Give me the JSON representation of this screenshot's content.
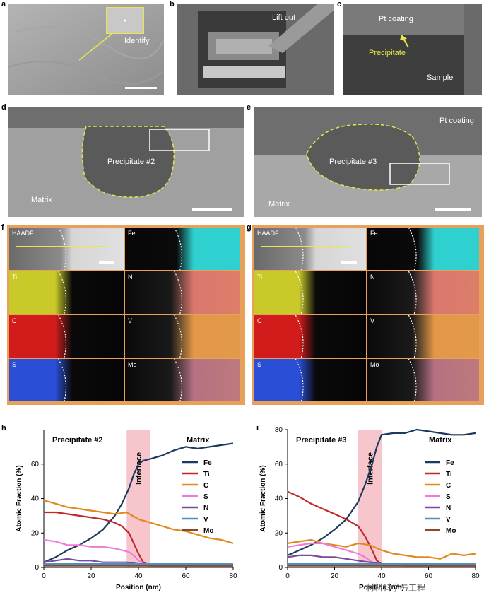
{
  "panels": {
    "a": {
      "letter": "a",
      "label": "Identify"
    },
    "b": {
      "letter": "b",
      "label": "Lift out"
    },
    "c": {
      "letter": "c",
      "coating": "Pt coating",
      "precipitate": "Precipitate",
      "sample": "Sample"
    },
    "d": {
      "letter": "d",
      "precipitate": "Precipitate  #2",
      "matrix": "Matrix"
    },
    "e": {
      "letter": "e",
      "precipitate": "Precipitate #3",
      "matrix": "Matrix",
      "coating": "Pt coating"
    },
    "f": {
      "letter": "f"
    },
    "g": {
      "letter": "g"
    },
    "h": {
      "letter": "h"
    },
    "i": {
      "letter": "i"
    }
  },
  "maps": {
    "f": [
      {
        "label": "HAADF",
        "color": "#d8d8d8"
      },
      {
        "label": "Fe",
        "color": "#2fd0d0"
      },
      {
        "label": "Ti",
        "color": "#c9c92a"
      },
      {
        "label": "N",
        "color": "#c43a8a"
      },
      {
        "label": "C",
        "color": "#d21c1c"
      },
      {
        "label": "V",
        "color": "#d88a2a"
      },
      {
        "label": "S",
        "color": "#2a4ed6"
      },
      {
        "label": "Mo",
        "color": "#6a2ac0"
      }
    ],
    "g": [
      {
        "label": "HAADF",
        "color": "#d8d8d8"
      },
      {
        "label": "Fe",
        "color": "#2fd0d0"
      },
      {
        "label": "Ti",
        "color": "#c9c92a"
      },
      {
        "label": "N",
        "color": "#c43a8a"
      },
      {
        "label": "C",
        "color": "#d21c1c"
      },
      {
        "label": "V",
        "color": "#d88a2a"
      },
      {
        "label": "S",
        "color": "#2a4ed6"
      },
      {
        "label": "Mo",
        "color": "#6a2ac0"
      }
    ]
  },
  "chart_data": [
    {
      "type": "line",
      "title": "Precipitate #2",
      "region_label": "Matrix",
      "band_label": "Interface",
      "band_range": [
        35,
        45
      ],
      "xlabel": "Position (nm)",
      "ylabel": "Atomic Fraction (%)",
      "xlim": [
        0,
        80
      ],
      "ylim": [
        0,
        80
      ],
      "xticks": [
        0,
        20,
        40,
        60,
        80
      ],
      "yticks": [
        0,
        20,
        40,
        60
      ],
      "legend_position": "right",
      "series": [
        {
          "name": "Fe",
          "color": "#1c3a5e",
          "x": [
            0,
            5,
            10,
            15,
            20,
            25,
            30,
            33,
            36,
            38,
            40,
            42,
            45,
            50,
            55,
            60,
            65,
            70,
            75,
            80
          ],
          "y": [
            3,
            6,
            10,
            13,
            17,
            22,
            30,
            37,
            46,
            54,
            60,
            62,
            63,
            65,
            68,
            70,
            69,
            70,
            71,
            72
          ]
        },
        {
          "name": "Ti",
          "color": "#c0282a",
          "x": [
            0,
            5,
            10,
            15,
            20,
            25,
            30,
            33,
            36,
            38,
            40,
            42,
            45,
            50,
            60,
            70,
            80
          ],
          "y": [
            32,
            32,
            31,
            30,
            29,
            28,
            26,
            24,
            20,
            14,
            8,
            3,
            1,
            0.5,
            0.5,
            0.5,
            0.5
          ]
        },
        {
          "name": "C",
          "color": "#e08a1e",
          "x": [
            0,
            5,
            10,
            15,
            20,
            25,
            30,
            35,
            40,
            45,
            50,
            55,
            60,
            65,
            70,
            75,
            80
          ],
          "y": [
            39,
            37,
            35,
            34,
            33,
            32,
            31,
            32,
            28,
            26,
            24,
            22,
            21,
            19,
            17,
            16,
            14
          ]
        },
        {
          "name": "S",
          "color": "#f07ad8",
          "x": [
            0,
            5,
            10,
            15,
            20,
            25,
            30,
            33,
            36,
            38,
            40,
            42,
            45,
            50,
            60,
            70,
            80
          ],
          "y": [
            16,
            15,
            13,
            13,
            12,
            12,
            11,
            10,
            9,
            7,
            4,
            2,
            0.5,
            0.5,
            0.5,
            0.5,
            0.5
          ]
        },
        {
          "name": "N",
          "color": "#7a4aa0",
          "x": [
            0,
            5,
            10,
            15,
            20,
            25,
            30,
            35,
            40,
            45,
            50,
            60,
            70,
            80
          ],
          "y": [
            3,
            4,
            5,
            4,
            4,
            3,
            3,
            3,
            2,
            1,
            1,
            1,
            1,
            1
          ]
        },
        {
          "name": "V",
          "color": "#4a90c8",
          "x": [
            0,
            10,
            20,
            30,
            40,
            50,
            60,
            70,
            80
          ],
          "y": [
            2,
            2,
            2,
            2,
            2,
            2,
            2,
            2,
            2
          ]
        },
        {
          "name": "Mo",
          "color": "#8a4a2a",
          "x": [
            0,
            10,
            20,
            30,
            40,
            50,
            60,
            70,
            80
          ],
          "y": [
            1,
            1,
            1,
            1,
            1,
            1,
            1,
            1,
            1
          ]
        }
      ]
    },
    {
      "type": "line",
      "title": "Precipitate #3",
      "region_label": "Matrix",
      "band_label": "Interface",
      "band_range": [
        30,
        40
      ],
      "xlabel": "Position (nm)",
      "ylabel": "Atomic Fraction (%)",
      "xlim": [
        0,
        80
      ],
      "ylim": [
        0,
        80
      ],
      "xticks": [
        0,
        20,
        40,
        60,
        80
      ],
      "yticks": [
        0,
        20,
        40,
        60,
        80
      ],
      "legend_position": "right",
      "series": [
        {
          "name": "Fe",
          "color": "#1c3a5e",
          "x": [
            0,
            5,
            10,
            15,
            20,
            25,
            30,
            33,
            36,
            38,
            40,
            45,
            50,
            55,
            60,
            65,
            70,
            75,
            80
          ],
          "y": [
            7,
            10,
            13,
            17,
            22,
            28,
            38,
            48,
            60,
            70,
            77,
            78,
            78,
            80,
            79,
            78,
            77,
            77,
            78
          ]
        },
        {
          "name": "Ti",
          "color": "#c0282a",
          "x": [
            0,
            5,
            10,
            15,
            20,
            25,
            30,
            33,
            36,
            38,
            40,
            45,
            50,
            60,
            70,
            80
          ],
          "y": [
            44,
            41,
            37,
            34,
            31,
            28,
            24,
            18,
            10,
            4,
            2,
            1,
            0.5,
            0.5,
            0.5,
            0.5
          ]
        },
        {
          "name": "C",
          "color": "#e08a1e",
          "x": [
            0,
            5,
            10,
            15,
            20,
            25,
            30,
            35,
            40,
            45,
            50,
            55,
            60,
            65,
            70,
            75,
            80
          ],
          "y": [
            14,
            15,
            16,
            14,
            13,
            12,
            14,
            13,
            10,
            8,
            7,
            6,
            6,
            5,
            8,
            7,
            8
          ]
        },
        {
          "name": "S",
          "color": "#f07ad8",
          "x": [
            0,
            5,
            10,
            15,
            20,
            25,
            30,
            33,
            36,
            40,
            45,
            50,
            60,
            70,
            80
          ],
          "y": [
            12,
            13,
            14,
            14,
            12,
            10,
            8,
            6,
            3,
            1,
            0.5,
            0.5,
            0.5,
            0.5,
            0.5
          ]
        },
        {
          "name": "N",
          "color": "#7a4aa0",
          "x": [
            0,
            5,
            10,
            15,
            20,
            25,
            30,
            35,
            40,
            50,
            60,
            70,
            80
          ],
          "y": [
            6,
            7,
            7,
            6,
            6,
            5,
            4,
            3,
            2,
            1,
            1,
            1,
            1
          ]
        },
        {
          "name": "V",
          "color": "#4a90c8",
          "x": [
            0,
            10,
            20,
            30,
            40,
            50,
            60,
            70,
            80
          ],
          "y": [
            2,
            2,
            2,
            2,
            2,
            2,
            2,
            2,
            2
          ]
        },
        {
          "name": "Mo",
          "color": "#8a4a2a",
          "x": [
            0,
            10,
            20,
            30,
            40,
            50,
            60,
            70,
            80
          ],
          "y": [
            1,
            1,
            1,
            1,
            1,
            1,
            1,
            1,
            1
          ]
        }
      ]
    }
  ],
  "watermark": "材料科学与工程"
}
